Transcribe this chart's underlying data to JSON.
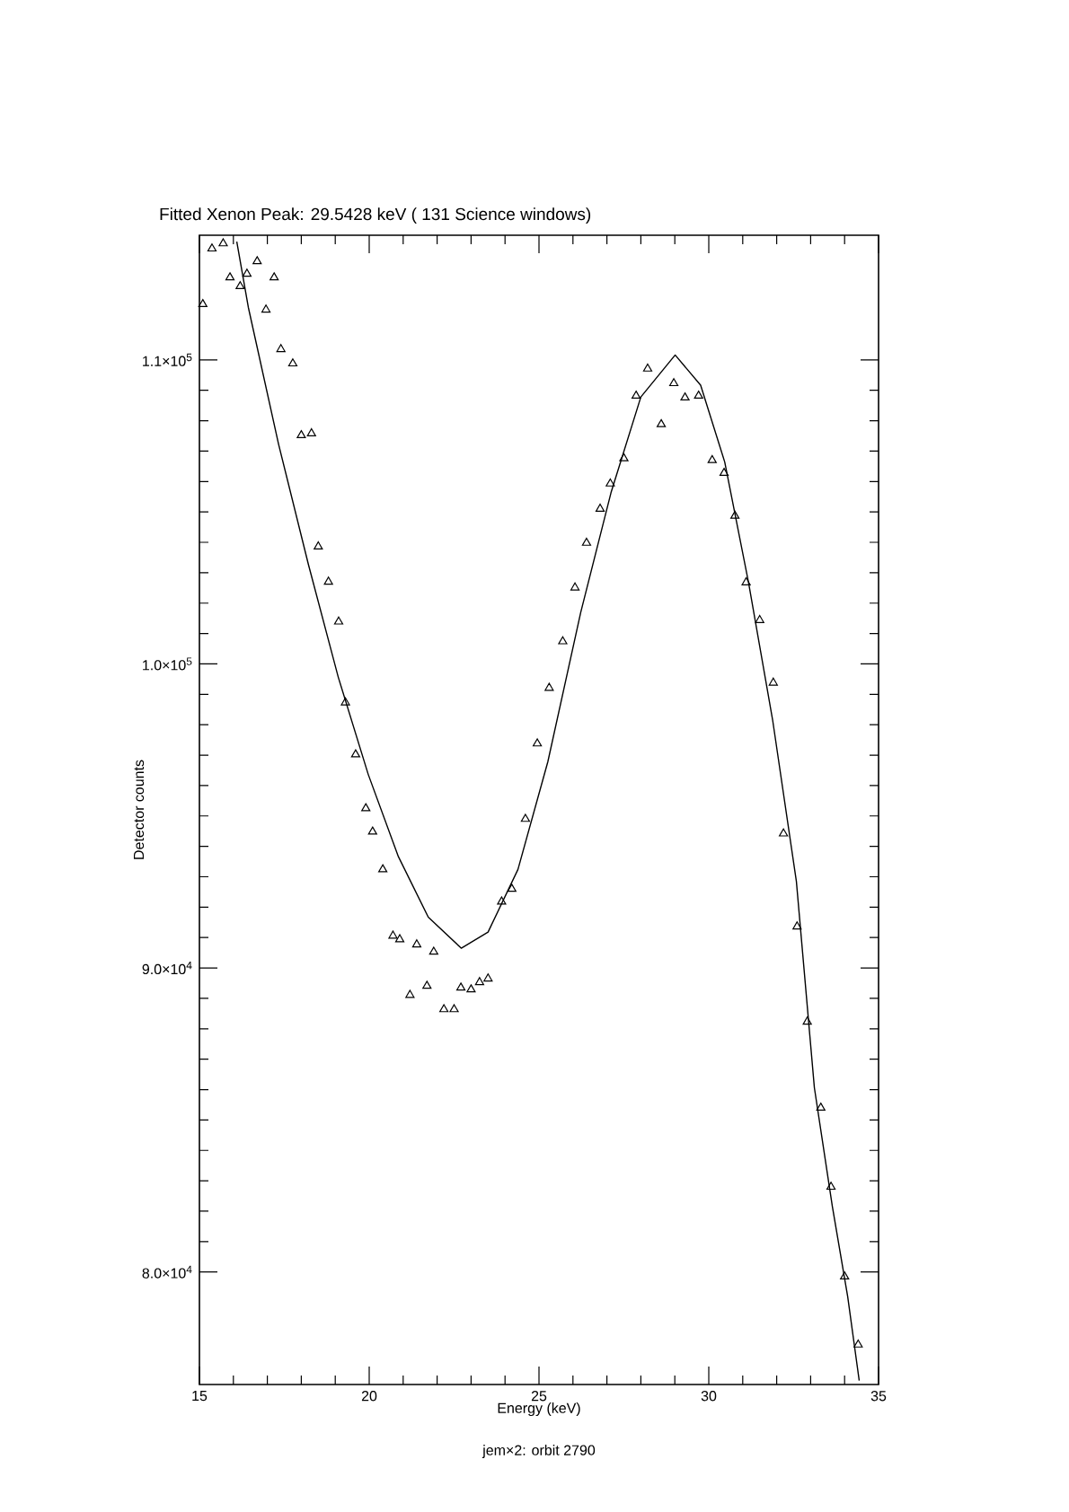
{
  "chart_data": {
    "type": "scatter",
    "title": "Fitted Xenon Peak: 29.5428 keV ( 131 Science windows)",
    "xlabel": "Energy (keV)",
    "ylabel": "Detector counts",
    "annotations": [
      "jem×2: orbit 2790"
    ],
    "xlim": [
      15,
      35
    ],
    "xticks": [
      15,
      20,
      25,
      30,
      35
    ],
    "ylim": [
      76300,
      114100
    ],
    "yticks": [
      {
        "value": 80000,
        "label": "8.0×10$^{4}$"
      },
      {
        "value": 90000,
        "label": "9.0×10$^{4}$"
      },
      {
        "value": 100000,
        "label": "1.0×10$^{5}$"
      },
      {
        "value": 110000,
        "label": "1.1×10$^{5}$"
      }
    ],
    "grid": false,
    "series": [
      {
        "marker": "triangle",
        "color": "#000000",
        "x": [
          15.1,
          15.37,
          15.7,
          15.9,
          16.2,
          16.4,
          16.7,
          16.96,
          17.2,
          17.4,
          17.75,
          18.0,
          18.3,
          18.5,
          18.8,
          19.1,
          19.3,
          19.6,
          19.9,
          20.1,
          20.4,
          20.7,
          20.9,
          21.2,
          21.4,
          21.7,
          21.9,
          22.2,
          22.5,
          22.7,
          23.0,
          23.25,
          23.5,
          23.9,
          24.2,
          24.6,
          24.95,
          25.3,
          25.7,
          26.06,
          26.4,
          26.8,
          27.1,
          27.5,
          27.86,
          28.2,
          28.6,
          28.97,
          29.3,
          29.7,
          30.1,
          30.45,
          30.77,
          31.1,
          31.5,
          31.9,
          32.2,
          32.6,
          32.9,
          33.3,
          33.6,
          34.0,
          34.4
        ],
        "values": [
          111830,
          113660,
          113830,
          112710,
          112420,
          112830,
          113240,
          111650,
          112710,
          110350,
          109880,
          107520,
          107580,
          103860,
          102700,
          101390,
          98730,
          97020,
          95250,
          94480,
          93240,
          91060,
          90940,
          89110,
          90770,
          89410,
          90530,
          88640,
          88640,
          89350,
          89290,
          89530,
          89650,
          92180,
          92600,
          94900,
          97380,
          99210,
          100740,
          102510,
          103980,
          105100,
          105930,
          106760,
          108820,
          109710,
          107880,
          109230,
          108760,
          108820,
          106700,
          106280,
          104870,
          102680,
          101440,
          99380,
          94420,
          91360,
          88230,
          85400,
          82800,
          79850,
          77610
        ]
      },
      {
        "type": "line",
        "marker": "none",
        "line_style": "solid",
        "color": "#000000",
        "x": [
          16.1,
          16.44,
          17.33,
          18.21,
          19.09,
          19.97,
          20.86,
          21.74,
          22.71,
          23.5,
          24.38,
          25.26,
          26.23,
          27.12,
          28.0,
          29.01,
          29.76,
          30.47,
          31.17,
          31.88,
          32.58,
          33.11,
          33.64,
          34.09,
          34.43
        ],
        "values": [
          113890,
          111730,
          107230,
          103270,
          99560,
          96370,
          93660,
          91670,
          90650,
          91180,
          93240,
          96780,
          101700,
          105630,
          108780,
          110160,
          109170,
          106640,
          102680,
          98160,
          92850,
          86060,
          82150,
          79200,
          76430
        ]
      }
    ]
  }
}
